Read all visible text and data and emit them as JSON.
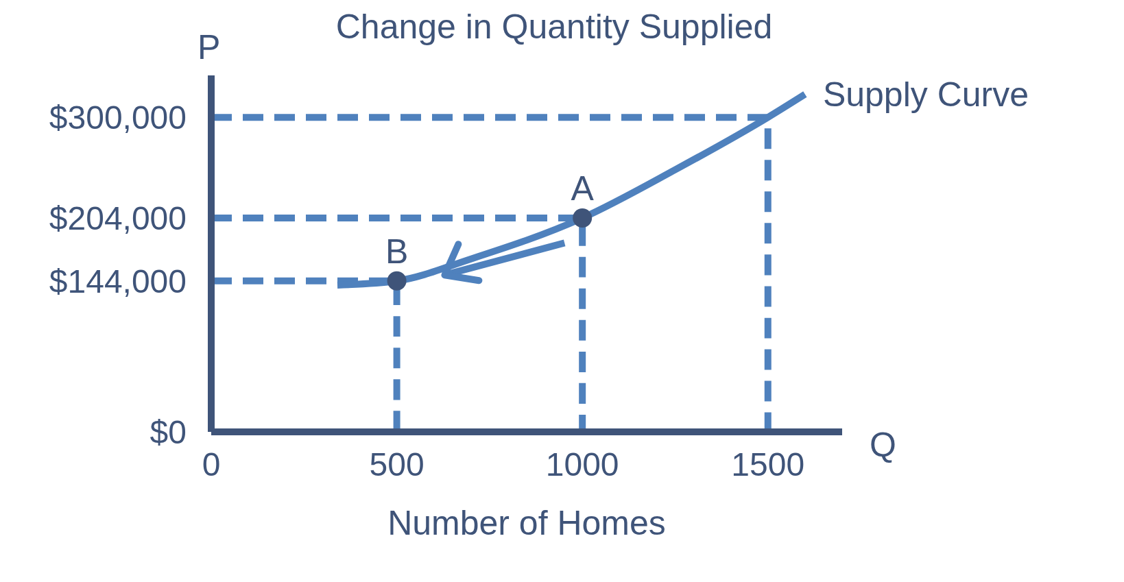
{
  "chart_data": {
    "type": "line",
    "title": "Change in Quantity Supplied",
    "xlabel": "Number of Homes",
    "ylabel": "P",
    "xlim": [
      0,
      1700
    ],
    "xticks": [
      0,
      500,
      1000,
      1500
    ],
    "ylim": [
      0,
      340000
    ],
    "yticks": [
      {
        "value": 0,
        "label": "$0"
      },
      {
        "value": 144000,
        "label": "$144,000"
      },
      {
        "value": 204000,
        "label": "$204,000"
      },
      {
        "value": 300000,
        "label": "$300,000"
      }
    ],
    "series": [
      {
        "color": "#4f81bd",
        "marker": "none",
        "line_style": "dashed",
        "x": [
          0,
          500,
          500
        ],
        "values": [
          144000,
          144000,
          0
        ]
      },
      {
        "color": "#4f81bd",
        "marker": "none",
        "line_style": "dashed",
        "x": [
          0,
          1000,
          1000
        ],
        "values": [
          204000,
          204000,
          0
        ]
      },
      {
        "color": "#4f81bd",
        "marker": "none",
        "line_style": "dashed",
        "x": [
          0,
          1500,
          1500
        ],
        "values": [
          300000,
          300000,
          0
        ]
      },
      {
        "color": "#4f81bd",
        "marker": "none",
        "line_style": "solid",
        "x": [
          340,
          500,
          700,
          1000,
          1250,
          1500,
          1600
        ],
        "values": [
          140000,
          144000,
          165000,
          204000,
          250000,
          300000,
          322000
        ]
      },
      {
        "type": "scatter",
        "color": "#3f5479",
        "marker": "circle",
        "x": [
          1000,
          500
        ],
        "values": [
          204000,
          144000
        ]
      }
    ],
    "annotations": [
      {
        "text": "A",
        "x": 1000,
        "y": 204000
      },
      {
        "text": "B",
        "x": 500,
        "y": 144000
      },
      {
        "text": "Supply Curve",
        "x": 1600,
        "y": 322000
      },
      "Q"
    ]
  }
}
